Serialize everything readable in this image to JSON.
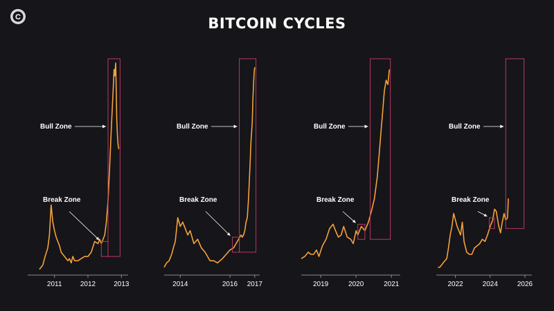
{
  "title": "BITCOIN CYCLES",
  "logo": {
    "letter": "C",
    "icon": "logo-icon"
  },
  "colors": {
    "background": "#161519",
    "price": "#f7a23b",
    "zone_box": "#b83a63",
    "axis": "#8a8a8a",
    "text": "#ffffff"
  },
  "chart_data": [
    {
      "type": "line",
      "bull_label": "Bull Zone",
      "break_label": "Break Zone",
      "x_ticks": [
        "2011",
        "2012",
        "2013"
      ],
      "x_tick_values": [
        2011.0,
        2012.0,
        2013.0
      ],
      "xlim": [
        2010.2,
        2013.2
      ],
      "ylim": [
        0,
        100
      ],
      "x": [
        2010.55,
        2010.65,
        2010.72,
        2010.8,
        2010.85,
        2010.9,
        2010.95,
        2011.0,
        2011.05,
        2011.1,
        2011.15,
        2011.2,
        2011.3,
        2011.4,
        2011.45,
        2011.5,
        2011.55,
        2011.6,
        2011.7,
        2011.8,
        2011.9,
        2012.0,
        2012.1,
        2012.2,
        2012.3,
        2012.35,
        2012.4,
        2012.45,
        2012.5,
        2012.55,
        2012.6,
        2012.65,
        2012.7,
        2012.75,
        2012.78,
        2012.8,
        2012.83,
        2012.86,
        2012.88,
        2012.9,
        2012.92
      ],
      "y": [
        2,
        4,
        8,
        12,
        18,
        32,
        24,
        20,
        17,
        15,
        13,
        10,
        8,
        6,
        7,
        5,
        8,
        6,
        6,
        7,
        8,
        8,
        10,
        15,
        14,
        16,
        14,
        16,
        18,
        24,
        34,
        50,
        68,
        84,
        95,
        92,
        98,
        72,
        65,
        60,
        58
      ],
      "break_zone": {
        "x0": 2012.4,
        "x1": 2012.6,
        "y0": 8,
        "y1": 15
      },
      "bull_zone": {
        "x0": 2012.6,
        "x1": 2012.96,
        "y0": 8,
        "y1": 100
      }
    },
    {
      "type": "line",
      "bull_label": "Bull Zone",
      "break_label": "Break Zone",
      "x_ticks": [
        "2014",
        "2016",
        "2017"
      ],
      "x_tick_values": [
        2014.0,
        2016.0,
        2017.0
      ],
      "xlim": [
        2013.35,
        2017.2
      ],
      "ylim": [
        0,
        100
      ],
      "x": [
        2013.35,
        2013.45,
        2013.55,
        2013.62,
        2013.68,
        2013.72,
        2013.8,
        2013.9,
        2014.0,
        2014.1,
        2014.2,
        2014.3,
        2014.4,
        2014.55,
        2014.7,
        2014.85,
        2015.0,
        2015.1,
        2015.2,
        2015.35,
        2015.5,
        2015.7,
        2015.85,
        2016.0,
        2016.15,
        2016.3,
        2016.45,
        2016.5,
        2016.55,
        2016.6,
        2016.65,
        2016.7,
        2016.75,
        2016.8,
        2016.85,
        2016.9,
        2016.93,
        2016.96,
        2016.98,
        2017.0
      ],
      "y": [
        3,
        5,
        6,
        8,
        10,
        12,
        15,
        26,
        22,
        24,
        21,
        18,
        20,
        14,
        16,
        12,
        10,
        8,
        6,
        6,
        5,
        7,
        9,
        11,
        12,
        15,
        18,
        17,
        18,
        20,
        24,
        26,
        35,
        48,
        62,
        70,
        82,
        90,
        94,
        96
      ],
      "break_zone": {
        "x0": 2016.1,
        "x1": 2016.38,
        "y0": 10,
        "y1": 17
      },
      "bull_zone": {
        "x0": 2016.38,
        "x1": 2017.05,
        "y0": 10,
        "y1": 100
      }
    },
    {
      "type": "line",
      "bull_label": "Bull Zone",
      "break_label": "Break Zone",
      "x_ticks": [
        "2019",
        "2020",
        "2021"
      ],
      "x_tick_values": [
        2019.0,
        2020.0,
        2021.0
      ],
      "xlim": [
        2018.45,
        2021.25
      ],
      "ylim": [
        0,
        100
      ],
      "x": [
        2018.45,
        2018.55,
        2018.65,
        2018.72,
        2018.8,
        2018.88,
        2018.95,
        2019.05,
        2019.15,
        2019.25,
        2019.35,
        2019.42,
        2019.5,
        2019.58,
        2019.65,
        2019.75,
        2019.85,
        2019.92,
        2020.0,
        2020.05,
        2020.15,
        2020.25,
        2020.35,
        2020.45,
        2020.52,
        2020.6,
        2020.65,
        2020.7,
        2020.75,
        2020.8,
        2020.85,
        2020.9,
        2020.94
      ],
      "y": [
        7,
        8,
        10,
        9,
        9,
        11,
        8,
        13,
        16,
        21,
        23,
        20,
        17,
        18,
        22,
        17,
        16,
        14,
        20,
        18,
        22,
        20,
        24,
        30,
        35,
        45,
        55,
        65,
        75,
        85,
        90,
        88,
        95
      ],
      "break_zone": {
        "x0": 2020.05,
        "x1": 2020.25,
        "y0": 16,
        "y1": 23
      },
      "bull_zone": {
        "x0": 2020.4,
        "x1": 2020.97,
        "y0": 16,
        "y1": 100
      }
    },
    {
      "type": "line",
      "bull_label": "Bull Zone",
      "break_label": "Break Zone",
      "x_ticks": [
        "2022",
        "2024",
        "2026"
      ],
      "x_tick_values": [
        2022.0,
        2024.0,
        2026.0
      ],
      "xlim": [
        2020.9,
        2026.4
      ],
      "ylim": [
        0,
        100
      ],
      "x": [
        2021.0,
        2021.1,
        2021.2,
        2021.3,
        2021.4,
        2021.5,
        2021.6,
        2021.7,
        2021.8,
        2021.9,
        2022.0,
        2022.1,
        2022.2,
        2022.3,
        2022.4,
        2022.5,
        2022.65,
        2022.8,
        2022.95,
        2023.1,
        2023.25,
        2023.4,
        2023.55,
        2023.7,
        2023.85,
        2024.0,
        2024.15,
        2024.25,
        2024.35,
        2024.5,
        2024.6,
        2024.7,
        2024.8,
        2024.9,
        2025.0,
        2025.05
      ],
      "y": [
        3,
        3,
        4,
        5,
        6,
        7,
        12,
        18,
        22,
        28,
        25,
        22,
        20,
        18,
        24,
        15,
        10,
        9,
        9,
        12,
        13,
        14,
        16,
        15,
        18,
        22,
        25,
        30,
        29,
        22,
        19,
        24,
        28,
        25,
        26,
        35
      ],
      "break_zone": {
        "x0": 2023.95,
        "x1": 2024.25,
        "y0": 21,
        "y1": 26
      },
      "bull_zone": {
        "x0": 2024.9,
        "x1": 2025.95,
        "y0": 21,
        "y1": 100
      }
    }
  ]
}
